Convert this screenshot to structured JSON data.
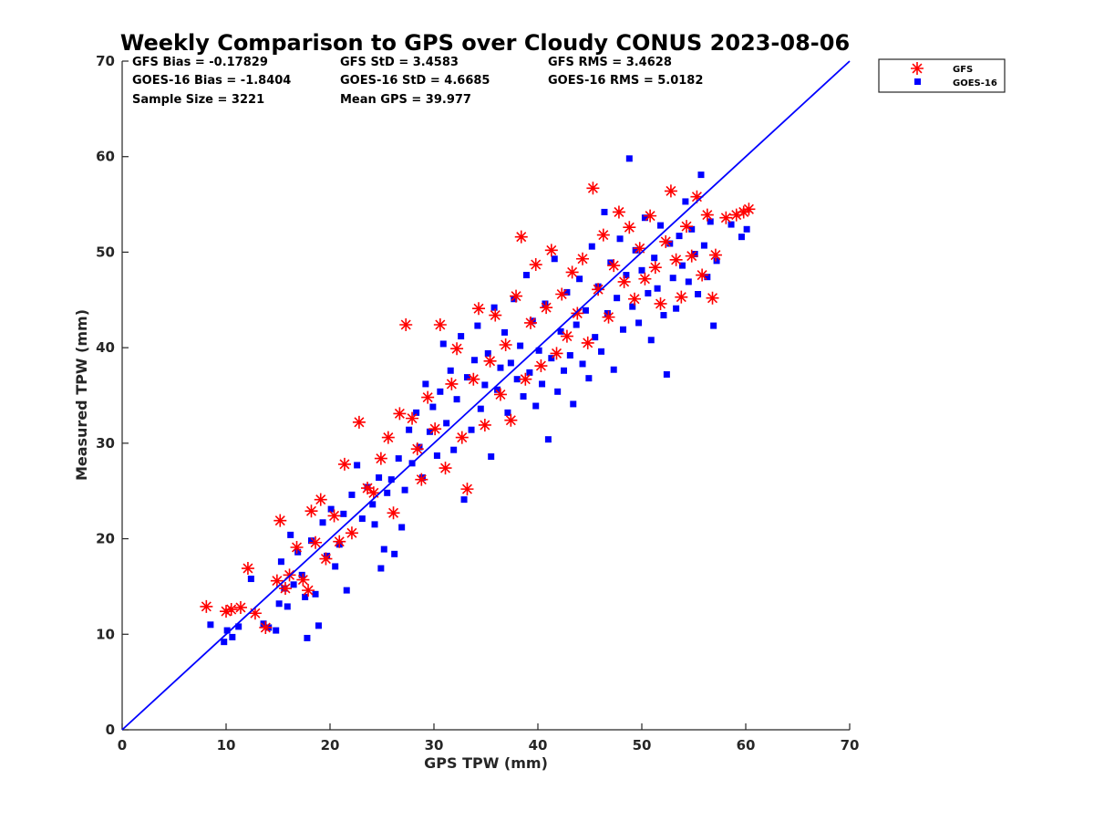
{
  "chart_data": {
    "type": "scatter",
    "title": "Weekly Comparison to GPS over Cloudy CONUS 2023-08-06",
    "xlabel": "GPS TPW (mm)",
    "ylabel": "Measured TPW (mm)",
    "xlim": [
      0,
      70
    ],
    "ylim": [
      0,
      70
    ],
    "xticks": [
      "0",
      "10",
      "20",
      "30",
      "40",
      "50",
      "60",
      "70"
    ],
    "yticks": [
      "0",
      "10",
      "20",
      "30",
      "40",
      "50",
      "60",
      "70"
    ],
    "grid": false,
    "legend_position": "outside-top-right",
    "stats": [
      [
        "GFS Bias = -0.17829",
        "GFS StD = 3.4583",
        "GFS RMS = 3.4628"
      ],
      [
        "GOES-16 Bias = -1.8404",
        "GOES-16 StD = 4.6685",
        "GOES-16 RMS = 5.0182"
      ],
      [
        "Sample Size = 3221",
        "Mean GPS = 39.977",
        ""
      ]
    ],
    "reference_line": {
      "x": [
        0,
        70
      ],
      "y": [
        0,
        70
      ],
      "color": "#0000ff"
    },
    "series": [
      {
        "name": "GOES-16",
        "marker": "square",
        "color": "#0000ff",
        "points": [
          [
            8.5,
            11
          ],
          [
            9.8,
            9.2
          ],
          [
            10.1,
            10.4
          ],
          [
            10.6,
            9.7
          ],
          [
            11.2,
            10.8
          ],
          [
            12.4,
            15.8
          ],
          [
            13.6,
            11.1
          ],
          [
            14.1,
            10.7
          ],
          [
            14.8,
            10.4
          ],
          [
            15.1,
            13.2
          ],
          [
            15.3,
            17.6
          ],
          [
            15.6,
            14.8
          ],
          [
            15.9,
            12.9
          ],
          [
            16.2,
            20.4
          ],
          [
            16.5,
            15.2
          ],
          [
            16.9,
            18.6
          ],
          [
            17.3,
            16.2
          ],
          [
            17.6,
            13.9
          ],
          [
            17.8,
            9.6
          ],
          [
            18.2,
            19.8
          ],
          [
            18.6,
            14.2
          ],
          [
            18.9,
            10.9
          ],
          [
            19.3,
            21.7
          ],
          [
            19.7,
            18.2
          ],
          [
            20.1,
            23.1
          ],
          [
            20.5,
            17.1
          ],
          [
            20.9,
            19.4
          ],
          [
            21.3,
            22.6
          ],
          [
            21.6,
            14.6
          ],
          [
            22.1,
            24.6
          ],
          [
            22.6,
            27.7
          ],
          [
            23.1,
            22.1
          ],
          [
            23.6,
            25.4
          ],
          [
            24.1,
            23.6
          ],
          [
            24.3,
            21.5
          ],
          [
            24.7,
            26.4
          ],
          [
            24.9,
            16.9
          ],
          [
            25.2,
            18.9
          ],
          [
            25.5,
            24.8
          ],
          [
            25.9,
            26.2
          ],
          [
            26.2,
            18.4
          ],
          [
            26.6,
            28.4
          ],
          [
            26.9,
            21.2
          ],
          [
            27.2,
            25.1
          ],
          [
            27.6,
            31.4
          ],
          [
            27.9,
            27.9
          ],
          [
            28.3,
            33.2
          ],
          [
            28.6,
            29.6
          ],
          [
            28.9,
            26.4
          ],
          [
            29.2,
            36.2
          ],
          [
            29.6,
            31.2
          ],
          [
            29.9,
            33.8
          ],
          [
            30.3,
            28.7
          ],
          [
            30.6,
            35.4
          ],
          [
            30.9,
            40.4
          ],
          [
            31.2,
            32.1
          ],
          [
            31.6,
            37.6
          ],
          [
            31.9,
            29.3
          ],
          [
            32.2,
            34.6
          ],
          [
            32.6,
            41.2
          ],
          [
            32.9,
            24.1
          ],
          [
            33.2,
            36.9
          ],
          [
            33.6,
            31.4
          ],
          [
            33.9,
            38.7
          ],
          [
            34.2,
            42.3
          ],
          [
            34.5,
            33.6
          ],
          [
            34.9,
            36.1
          ],
          [
            35.2,
            39.4
          ],
          [
            35.5,
            28.6
          ],
          [
            35.8,
            44.2
          ],
          [
            36.1,
            35.6
          ],
          [
            36.4,
            37.9
          ],
          [
            36.8,
            41.6
          ],
          [
            37.1,
            33.2
          ],
          [
            37.4,
            38.4
          ],
          [
            37.7,
            45.1
          ],
          [
            38,
            36.7
          ],
          [
            38.3,
            40.2
          ],
          [
            38.6,
            34.9
          ],
          [
            38.9,
            47.6
          ],
          [
            39.2,
            37.4
          ],
          [
            39.5,
            42.8
          ],
          [
            39.8,
            33.9
          ],
          [
            40.1,
            39.7
          ],
          [
            40.4,
            36.2
          ],
          [
            40.7,
            44.6
          ],
          [
            41,
            30.4
          ],
          [
            41.3,
            38.9
          ],
          [
            41.6,
            49.3
          ],
          [
            41.9,
            35.4
          ],
          [
            42.2,
            41.7
          ],
          [
            42.5,
            37.6
          ],
          [
            42.8,
            45.8
          ],
          [
            43.1,
            39.2
          ],
          [
            43.4,
            34.1
          ],
          [
            43.7,
            42.4
          ],
          [
            44,
            47.2
          ],
          [
            44.3,
            38.3
          ],
          [
            44.6,
            43.9
          ],
          [
            44.9,
            36.8
          ],
          [
            45.2,
            50.6
          ],
          [
            45.5,
            41.1
          ],
          [
            45.8,
            46.4
          ],
          [
            46.1,
            39.6
          ],
          [
            46.4,
            54.2
          ],
          [
            46.7,
            43.6
          ],
          [
            47,
            48.9
          ],
          [
            47.3,
            37.7
          ],
          [
            47.6,
            45.2
          ],
          [
            47.9,
            51.4
          ],
          [
            48.2,
            41.9
          ],
          [
            48.5,
            47.6
          ],
          [
            48.8,
            59.8
          ],
          [
            49.1,
            44.3
          ],
          [
            49.4,
            50.2
          ],
          [
            49.7,
            42.6
          ],
          [
            50,
            48.1
          ],
          [
            50.3,
            53.6
          ],
          [
            50.6,
            45.7
          ],
          [
            50.9,
            40.8
          ],
          [
            51.2,
            49.4
          ],
          [
            51.5,
            46.2
          ],
          [
            51.8,
            52.8
          ],
          [
            52.1,
            43.4
          ],
          [
            52.4,
            37.2
          ],
          [
            52.7,
            50.9
          ],
          [
            53,
            47.3
          ],
          [
            53.3,
            44.1
          ],
          [
            53.6,
            51.7
          ],
          [
            53.9,
            48.6
          ],
          [
            54.2,
            55.3
          ],
          [
            54.5,
            46.9
          ],
          [
            54.8,
            52.4
          ],
          [
            55.1,
            49.8
          ],
          [
            55.4,
            45.6
          ],
          [
            55.7,
            58.1
          ],
          [
            56,
            50.7
          ],
          [
            56.3,
            47.4
          ],
          [
            56.6,
            53.2
          ],
          [
            56.9,
            42.3
          ],
          [
            57.2,
            49.1
          ],
          [
            58.6,
            52.9
          ],
          [
            59.6,
            51.6
          ],
          [
            60.1,
            52.4
          ]
        ]
      },
      {
        "name": "GFS",
        "marker": "asterisk",
        "color": "#ff0000",
        "points": [
          [
            8.1,
            12.9
          ],
          [
            10,
            12.4
          ],
          [
            10.5,
            12.6
          ],
          [
            11.4,
            12.8
          ],
          [
            12.1,
            16.9
          ],
          [
            12.8,
            12.2
          ],
          [
            13.8,
            10.7
          ],
          [
            14.9,
            15.6
          ],
          [
            15.2,
            21.9
          ],
          [
            15.7,
            14.8
          ],
          [
            16.1,
            16.2
          ],
          [
            16.8,
            19.1
          ],
          [
            17.4,
            15.7
          ],
          [
            17.9,
            14.6
          ],
          [
            18.2,
            22.9
          ],
          [
            18.6,
            19.6
          ],
          [
            19.1,
            24.1
          ],
          [
            19.6,
            17.9
          ],
          [
            20.4,
            22.4
          ],
          [
            20.9,
            19.7
          ],
          [
            21.4,
            27.8
          ],
          [
            22.1,
            20.6
          ],
          [
            22.8,
            32.2
          ],
          [
            23.6,
            25.3
          ],
          [
            24.2,
            24.8
          ],
          [
            24.9,
            28.4
          ],
          [
            25.6,
            30.6
          ],
          [
            26.1,
            22.7
          ],
          [
            26.7,
            33.1
          ],
          [
            27.3,
            42.4
          ],
          [
            27.9,
            32.6
          ],
          [
            28.4,
            29.4
          ],
          [
            28.8,
            26.2
          ],
          [
            29.4,
            34.8
          ],
          [
            30.1,
            31.5
          ],
          [
            30.6,
            42.4
          ],
          [
            31.1,
            27.4
          ],
          [
            31.7,
            36.2
          ],
          [
            32.2,
            39.9
          ],
          [
            32.7,
            30.6
          ],
          [
            33.2,
            25.2
          ],
          [
            33.8,
            36.7
          ],
          [
            34.3,
            44.1
          ],
          [
            34.9,
            31.9
          ],
          [
            35.4,
            38.6
          ],
          [
            35.9,
            43.4
          ],
          [
            36.4,
            35.1
          ],
          [
            36.9,
            40.3
          ],
          [
            37.4,
            32.4
          ],
          [
            37.9,
            45.4
          ],
          [
            38.4,
            51.6
          ],
          [
            38.8,
            36.7
          ],
          [
            39.3,
            42.6
          ],
          [
            39.8,
            48.7
          ],
          [
            40.3,
            38.1
          ],
          [
            40.8,
            44.2
          ],
          [
            41.3,
            50.2
          ],
          [
            41.8,
            39.4
          ],
          [
            42.3,
            45.6
          ],
          [
            42.8,
            41.2
          ],
          [
            43.3,
            47.9
          ],
          [
            43.8,
            43.6
          ],
          [
            44.3,
            49.3
          ],
          [
            44.8,
            40.5
          ],
          [
            45.3,
            56.7
          ],
          [
            45.8,
            46.1
          ],
          [
            46.3,
            51.8
          ],
          [
            46.8,
            43.2
          ],
          [
            47.3,
            48.6
          ],
          [
            47.8,
            54.2
          ],
          [
            48.3,
            46.9
          ],
          [
            48.8,
            52.6
          ],
          [
            49.3,
            45.1
          ],
          [
            49.8,
            50.4
          ],
          [
            50.3,
            47.2
          ],
          [
            50.8,
            53.8
          ],
          [
            51.3,
            48.4
          ],
          [
            51.8,
            44.6
          ],
          [
            52.3,
            51.1
          ],
          [
            52.8,
            56.4
          ],
          [
            53.3,
            49.2
          ],
          [
            53.8,
            45.3
          ],
          [
            54.3,
            52.7
          ],
          [
            54.8,
            49.6
          ],
          [
            55.3,
            55.8
          ],
          [
            55.8,
            47.6
          ],
          [
            56.3,
            53.9
          ],
          [
            56.8,
            45.2
          ],
          [
            57.1,
            49.7
          ],
          [
            58.1,
            53.6
          ],
          [
            59.1,
            53.9
          ],
          [
            59.8,
            54.2
          ],
          [
            60.3,
            54.5
          ]
        ]
      }
    ]
  }
}
